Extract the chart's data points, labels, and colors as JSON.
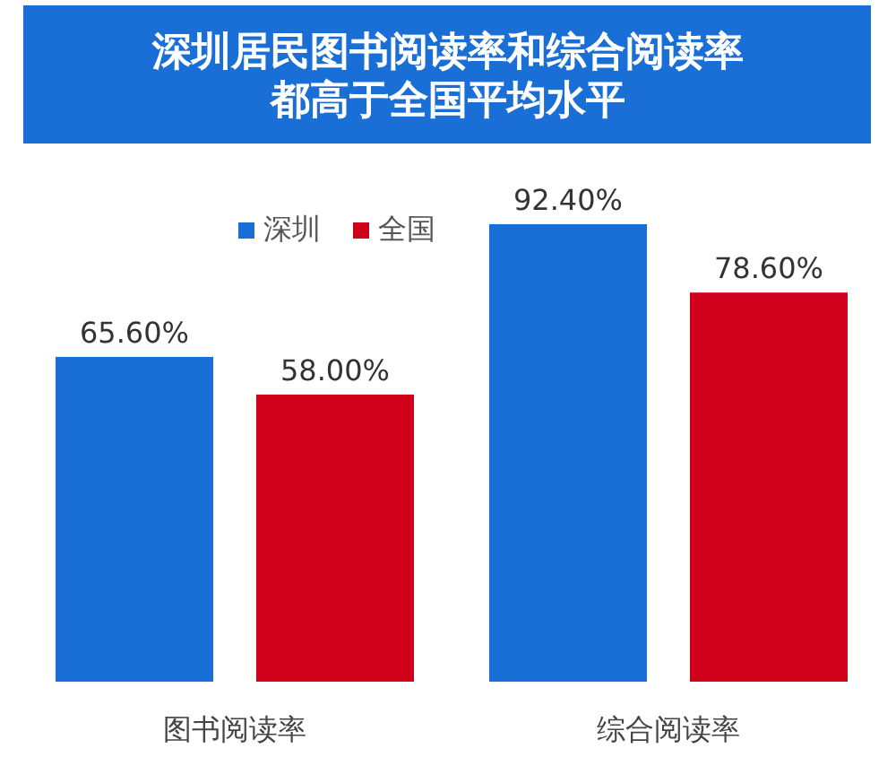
{
  "chart_data": {
    "type": "bar",
    "title": "深圳居民图书阅读率和综合阅读率都高于全国平均水平",
    "categories": [
      "图书阅读率",
      "综合阅读率"
    ],
    "series": [
      {
        "name": "深圳",
        "color": "#1a6fd6",
        "values": [
          65.6,
          92.4
        ],
        "value_labels": [
          "65.60%",
          "92.40%"
        ]
      },
      {
        "name": "全国",
        "color": "#d0021b",
        "values": [
          58.0,
          78.6
        ],
        "value_labels": [
          "58.00%",
          "78.60%"
        ]
      }
    ],
    "legend": "top"
  }
}
